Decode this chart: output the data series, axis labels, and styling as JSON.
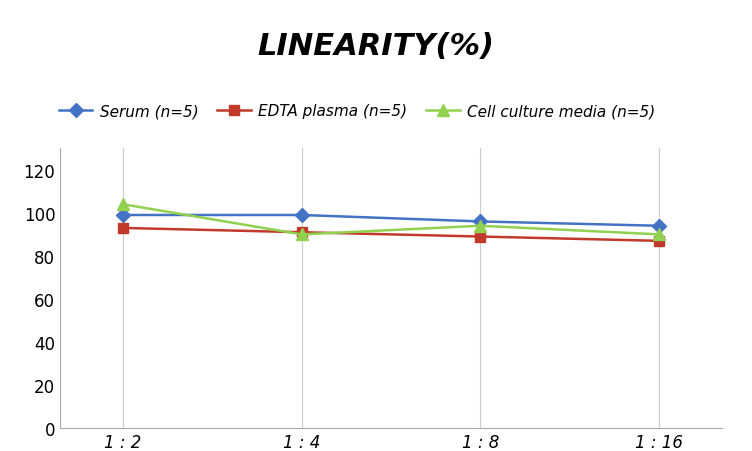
{
  "title": "LINEARITY(%)",
  "x_labels": [
    "1 : 2",
    "1 : 4",
    "1 : 8",
    "1 : 16"
  ],
  "x_positions": [
    0,
    1,
    2,
    3
  ],
  "series": [
    {
      "label": "Serum (n=5)",
      "values": [
        99,
        99,
        96,
        94
      ],
      "color": "#4472C4",
      "marker": "D",
      "markersize": 7,
      "linewidth": 1.8
    },
    {
      "label": "EDTA plasma (n=5)",
      "values": [
        93,
        91,
        89,
        87
      ],
      "color": "#C0392B",
      "marker": "s",
      "markersize": 7,
      "linewidth": 1.8
    },
    {
      "label": "Cell culture media (n=5)",
      "values": [
        104,
        90,
        94,
        90
      ],
      "color": "#92D050",
      "marker": "^",
      "markersize": 8,
      "linewidth": 1.8
    }
  ],
  "ylim": [
    0,
    130
  ],
  "yticks": [
    0,
    20,
    40,
    60,
    80,
    100,
    120
  ],
  "grid_color": "#CCCCCC",
  "background_color": "#FFFFFF",
  "title_fontsize": 22,
  "legend_fontsize": 11,
  "tick_fontsize": 12
}
